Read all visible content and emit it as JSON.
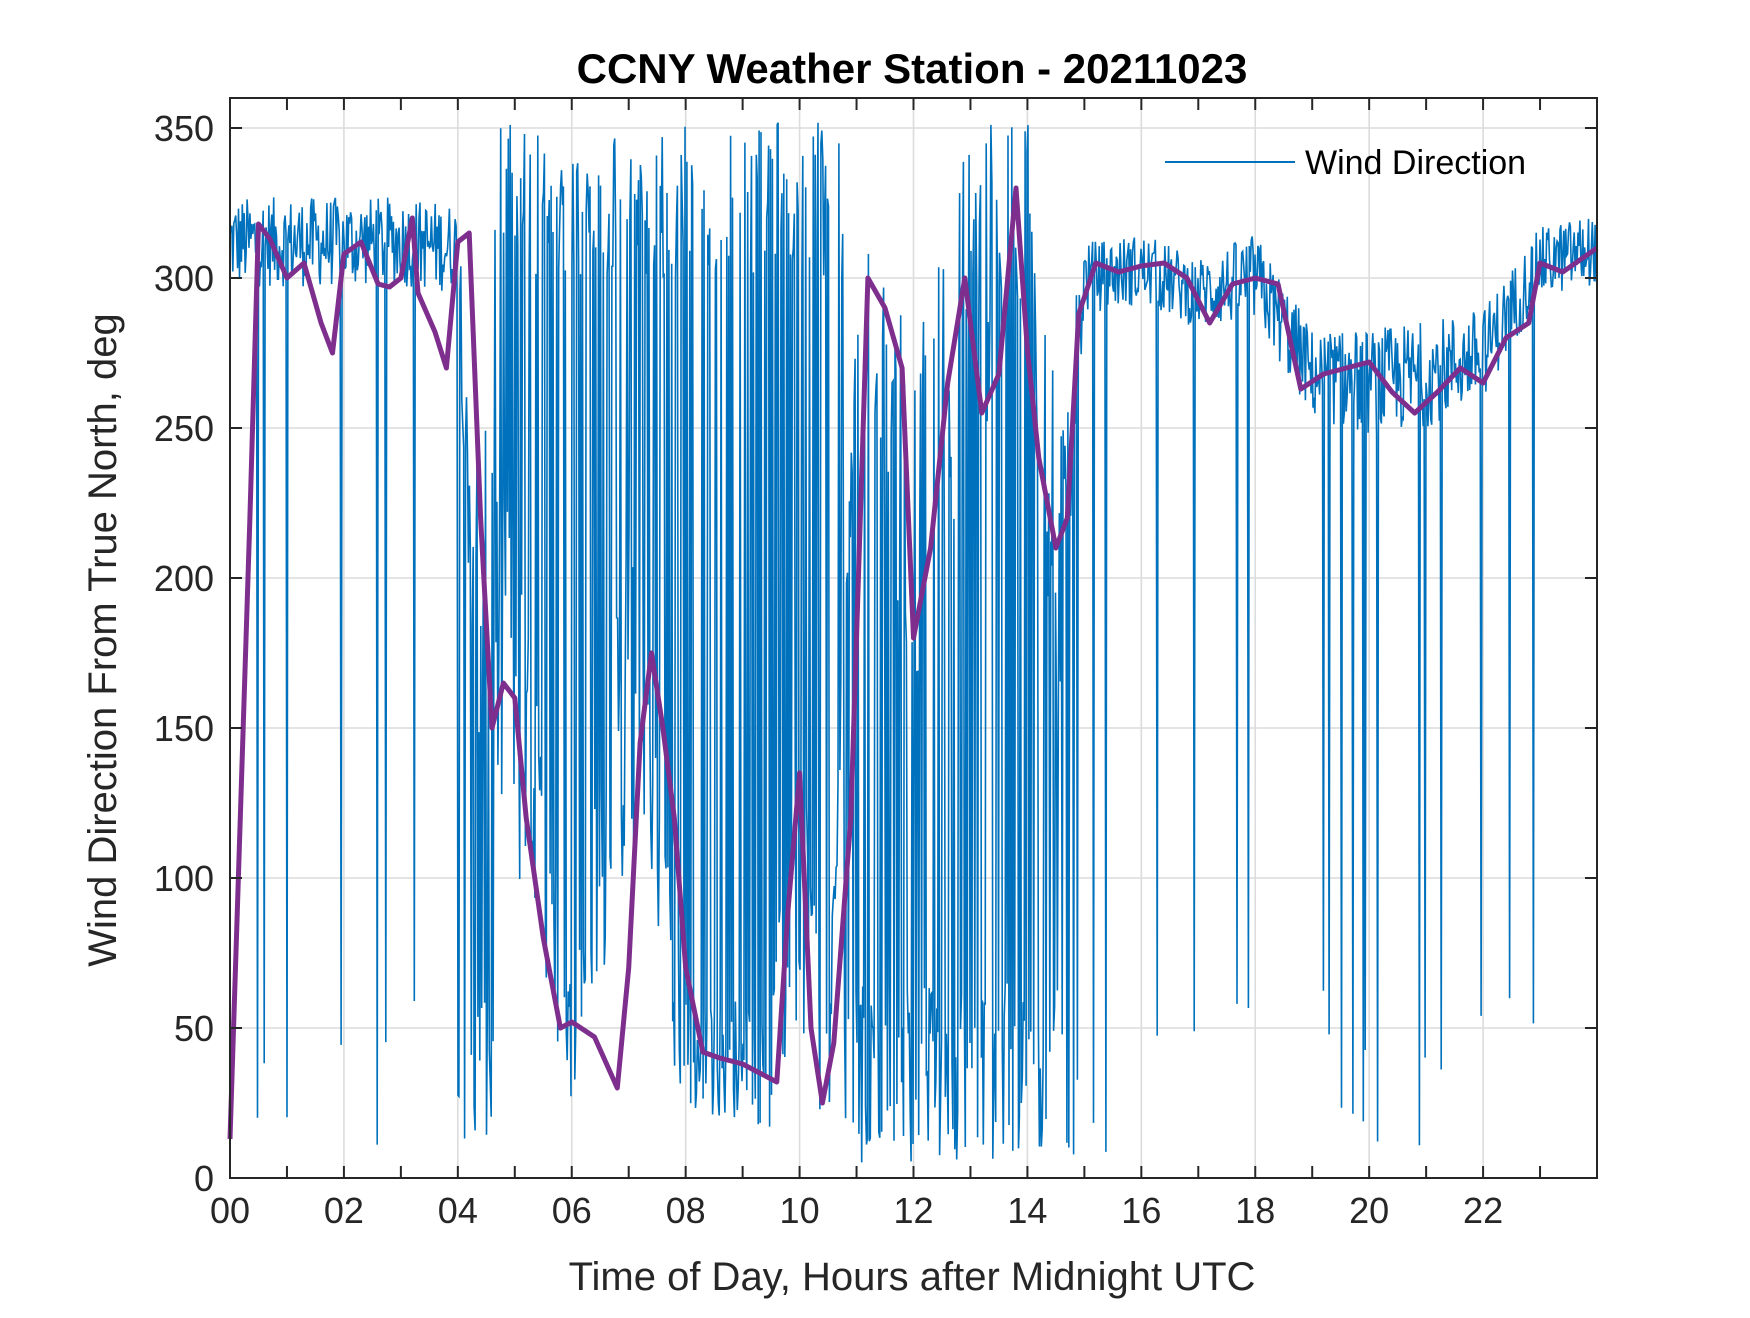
{
  "chart_data": {
    "type": "line",
    "title": "CCNY Weather Station - 20211023",
    "xlabel": "Time of Day, Hours after Midnight UTC",
    "ylabel": "Wind Direction From True North, deg",
    "xlim": [
      0,
      24
    ],
    "ylim": [
      0,
      360
    ],
    "xticks": [
      0,
      2,
      4,
      6,
      8,
      10,
      12,
      14,
      16,
      18,
      20,
      22
    ],
    "xtick_labels": [
      "00",
      "02",
      "04",
      "06",
      "08",
      "10",
      "12",
      "14",
      "16",
      "18",
      "20",
      "22"
    ],
    "yticks": [
      0,
      50,
      100,
      150,
      200,
      250,
      300,
      350
    ],
    "ytick_labels": [
      "0",
      "50",
      "100",
      "150",
      "200",
      "250",
      "300",
      "350"
    ],
    "grid": true,
    "legend": {
      "position": "top-right",
      "entries": [
        "Wind Direction"
      ]
    },
    "series": [
      {
        "name": "Wind Direction",
        "color": "#0072BD",
        "style": "thin-noisy",
        "envelope": {
          "x": [
            0,
            1,
            2,
            3,
            4,
            4.3,
            5,
            6,
            7,
            8,
            9,
            9.5,
            10,
            10.5,
            11,
            12,
            13,
            14,
            14.5,
            15,
            16,
            17,
            18,
            19,
            20,
            21,
            22,
            23,
            24
          ],
          "center": [
            312,
            312,
            312,
            312,
            310,
            200,
            160,
            45,
            160,
            40,
            40,
            35,
            110,
            30,
            300,
            220,
            290,
            330,
            200,
            300,
            303,
            295,
            300,
            268,
            265,
            268,
            275,
            305,
            310
          ],
          "spread": [
            15,
            15,
            15,
            15,
            15,
            60,
            60,
            20,
            60,
            20,
            20,
            20,
            60,
            20,
            30,
            60,
            60,
            30,
            60,
            12,
            12,
            12,
            15,
            15,
            18,
            18,
            15,
            12,
            12
          ],
          "spike_probability": [
            0.04,
            0.04,
            0.04,
            0.04,
            0.1,
            0.45,
            0.45,
            0.5,
            0.55,
            0.4,
            0.2,
            0.3,
            0.5,
            0.45,
            0.55,
            0.5,
            0.5,
            0.45,
            0.45,
            0.02,
            0.02,
            0.03,
            0.03,
            0.05,
            0.06,
            0.05,
            0.03,
            0.02,
            0.02
          ]
        }
      },
      {
        "name": "",
        "color": "#7E2F8E",
        "style": "thick-smoothed",
        "x": [
          0,
          0.35,
          0.5,
          0.7,
          1.0,
          1.3,
          1.6,
          1.8,
          2.0,
          2.3,
          2.6,
          2.8,
          3.0,
          3.2,
          3.3,
          3.6,
          3.8,
          4.0,
          4.2,
          4.4,
          4.6,
          4.8,
          5.0,
          5.2,
          5.5,
          5.8,
          6.0,
          6.4,
          6.8,
          7.0,
          7.2,
          7.4,
          7.6,
          7.8,
          8.0,
          8.3,
          8.6,
          9.0,
          9.3,
          9.6,
          9.8,
          10.0,
          10.2,
          10.4,
          10.6,
          10.9,
          11.2,
          11.5,
          11.8,
          12.0,
          12.3,
          12.6,
          12.9,
          13.2,
          13.5,
          13.8,
          14.0,
          14.2,
          14.5,
          14.7,
          14.9,
          15.2,
          15.6,
          16.0,
          16.4,
          16.8,
          17.2,
          17.6,
          18.0,
          18.4,
          18.8,
          19.2,
          19.6,
          20.0,
          20.4,
          20.8,
          21.2,
          21.6,
          22.0,
          22.4,
          22.8,
          23.0,
          23.4,
          24.0
        ],
        "y": [
          13,
          220,
          318,
          313,
          300,
          305,
          285,
          275,
          308,
          312,
          298,
          297,
          300,
          320,
          295,
          282,
          270,
          312,
          315,
          220,
          150,
          165,
          160,
          120,
          80,
          50,
          52,
          47,
          30,
          70,
          145,
          175,
          150,
          120,
          70,
          42,
          40,
          38,
          35,
          32,
          90,
          135,
          50,
          25,
          45,
          120,
          300,
          290,
          270,
          180,
          210,
          265,
          300,
          255,
          268,
          330,
          276,
          240,
          210,
          220,
          288,
          305,
          302,
          304,
          305,
          300,
          285,
          298,
          300,
          298,
          263,
          268,
          270,
          272,
          262,
          255,
          262,
          270,
          265,
          280,
          285,
          305,
          302,
          310
        ]
      }
    ]
  }
}
